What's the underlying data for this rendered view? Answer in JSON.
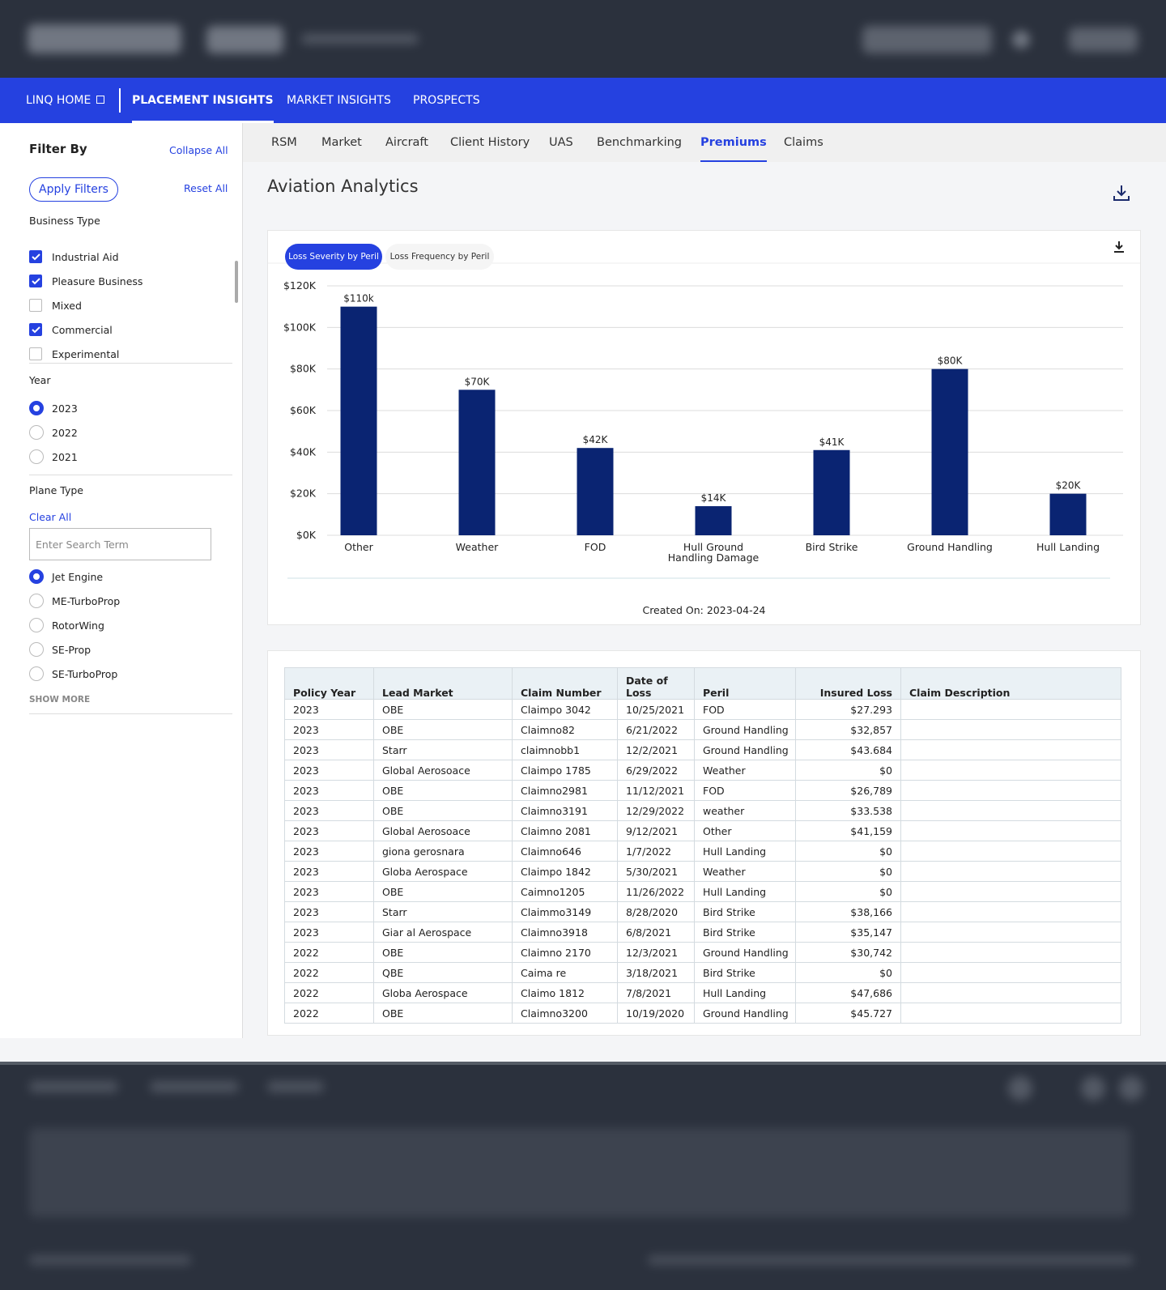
{
  "nav": {
    "items": [
      "LINQ HOME",
      "PLACEMENT INSIGHTS",
      "MARKET INSIGHTS",
      "PROSPECTS"
    ],
    "active": 1
  },
  "sidebar": {
    "title": "Filter By",
    "collapse": "Collapse All",
    "apply": "Apply Filters",
    "reset": "Reset All",
    "business_type": {
      "label": "Business Type",
      "options": [
        {
          "label": "Industrial Aid",
          "checked": true
        },
        {
          "label": "Pleasure Business",
          "checked": true
        },
        {
          "label": "Mixed",
          "checked": false
        },
        {
          "label": "Commercial",
          "checked": true
        },
        {
          "label": "Experimental",
          "checked": false
        }
      ]
    },
    "year": {
      "label": "Year",
      "options": [
        "2023",
        "2022",
        "2021"
      ],
      "selected": 0
    },
    "plane_type": {
      "label": "Plane Type",
      "clear": "Clear All",
      "search_placeholder": "Enter Search Term",
      "options": [
        "Jet Engine",
        "ME-TurboProp",
        "RotorWing",
        "SE-Prop",
        "SE-TurboProp"
      ],
      "selected": 0,
      "show_more": "SHOW MORE"
    }
  },
  "tabs": {
    "items": [
      "RSM",
      "Market",
      "Aircraft",
      "Client History",
      "UAS",
      "Benchmarking",
      "Premiums",
      "Claims"
    ],
    "active": 6
  },
  "page_title": "Aviation Analytics",
  "chart_data": {
    "type": "bar",
    "toggles": [
      "Loss Severity by Peril",
      "Loss Frequency by Peril"
    ],
    "active_toggle": 0,
    "categories": [
      "Other",
      "Weather",
      "FOD",
      "Hull Ground Handling Damage",
      "Bird Strike",
      "Ground Handling",
      "Hull Landing"
    ],
    "values": [
      110000,
      70000,
      42000,
      14000,
      41000,
      80000,
      20000
    ],
    "value_labels": [
      "$110k",
      "$70K",
      "$42K",
      "$14K",
      "$41K",
      "$80K",
      "$20K"
    ],
    "color": "#0a2472",
    "ylim": [
      0,
      120000
    ],
    "yticks": [
      {
        "value": 0,
        "label": "$0K"
      },
      {
        "value": 20000,
        "label": "$20K"
      },
      {
        "value": 40000,
        "label": "$40K"
      },
      {
        "value": 60000,
        "label": "$60K"
      },
      {
        "value": 80000,
        "label": "$80K"
      },
      {
        "value": 100000,
        "label": "$100K"
      },
      {
        "value": 120000,
        "label": "$120K"
      }
    ],
    "grid": true,
    "footer": "Created On: 2023-04-24"
  },
  "table": {
    "columns": [
      "Policy Year",
      "Lead Market",
      "Claim Number",
      "Date of Loss",
      "Peril",
      "Insured Loss",
      "Claim Description"
    ],
    "rows": [
      [
        "2023",
        "OBE",
        "Claimpo 3042",
        "10/25/2021",
        "FOD",
        "$27.293"
      ],
      [
        "2023",
        "OBE",
        "Claimno82",
        "6/21/2022",
        "Ground Handling",
        "$32,857"
      ],
      [
        "2023",
        "Starr",
        "claimnobb1",
        "12/2/2021",
        "Ground Handling",
        "$43.684"
      ],
      [
        "2023",
        "Global Aerosoace",
        "Claimpo 1785",
        "6/29/2022",
        "Weather",
        "$0"
      ],
      [
        "2023",
        "OBE",
        "Claimno2981",
        "11/12/2021",
        "FOD",
        "$26,789"
      ],
      [
        "2023",
        "OBE",
        "Claimno3191",
        "12/29/2022",
        "weather",
        "$33.538"
      ],
      [
        "2023",
        "Global Aerosoace",
        "Claimno 2081",
        "9/12/2021",
        "Other",
        "$41,159"
      ],
      [
        "2023",
        "giona gerosnara",
        "Claimno646",
        "1/7/2022",
        "Hull Landing",
        "$0"
      ],
      [
        "2023",
        "Globa Aerospace",
        "Claimpo 1842",
        "5/30/2021",
        "Weather",
        "$0"
      ],
      [
        "2023",
        "OBE",
        "Caimno1205",
        "11/26/2022",
        "Hull Landing",
        "$0"
      ],
      [
        "2023",
        "Starr",
        "Claimmo3149",
        "8/28/2020",
        "Bird Strike",
        "$38,166"
      ],
      [
        "2023",
        "Giar al Aerospace",
        "Claimno3918",
        "6/8/2021",
        "Bird Strike",
        "$35,147"
      ],
      [
        "2022",
        "OBE",
        "Claimno 2170",
        "12/3/2021",
        "Ground Handling",
        "$30,742"
      ],
      [
        "2022",
        "QBE",
        "Caima re",
        "3/18/2021",
        "Bird Strike",
        "$0"
      ],
      [
        "2022",
        "Globa Aerospace",
        "Claimo 1812",
        "7/8/2021",
        "Hull Landing",
        "$47,686"
      ],
      [
        "2022",
        "OBE",
        "Claimno3200",
        "10/19/2020",
        "Ground Handling",
        "$45.727"
      ]
    ]
  }
}
